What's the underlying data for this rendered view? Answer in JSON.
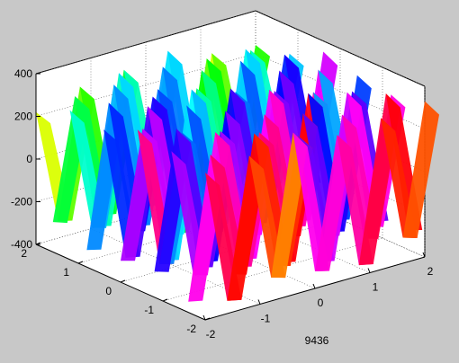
{
  "window": {
    "background": "#c8c8c8",
    "axes_background": "#ffffff"
  },
  "chart_data": {
    "type": "surface",
    "title": "",
    "xlabel": "9436",
    "ylabel": "",
    "zlabel": "",
    "xlim": [
      -2,
      2
    ],
    "ylim": [
      -2,
      2
    ],
    "zlim": [
      -400,
      400
    ],
    "x_ticks": [
      "-2",
      "-1",
      "0",
      "1",
      "2"
    ],
    "y_ticks": [
      "-2",
      "-1",
      "0",
      "1",
      "2"
    ],
    "z_ticks": [
      "-400",
      "-200",
      "0",
      "200",
      "400"
    ],
    "grid": true,
    "box": true,
    "colormap": "hsv",
    "colormap_stops": [
      "#ff0000",
      "#ff8800",
      "#ffff00",
      "#00ff00",
      "#00ffff",
      "#0000ff",
      "#ff00ff",
      "#ff0000"
    ],
    "surface_samples": {
      "x": [
        -2.0,
        -1.6,
        -1.2,
        -0.8,
        -0.4,
        0.0,
        0.4,
        0.8,
        1.2,
        1.6,
        2.0
      ],
      "series": [
        {
          "y": 2.0,
          "z": [
            220,
            -320,
            280,
            -350,
            300,
            -280,
            330,
            -360,
            260,
            -300,
            240
          ]
        },
        {
          "y": 1.6,
          "z": [
            -260,
            300,
            -340,
            350,
            -300,
            320,
            -350,
            300,
            -320,
            280,
            -250
          ]
        },
        {
          "y": 1.2,
          "z": [
            300,
            -280,
            360,
            -330,
            280,
            -360,
            310,
            -290,
            350,
            -310,
            270
          ]
        },
        {
          "y": 0.8,
          "z": [
            -320,
            340,
            -290,
            310,
            -360,
            290,
            -330,
            360,
            -280,
            330,
            -300
          ]
        },
        {
          "y": 0.4,
          "z": [
            280,
            -350,
            330,
            -300,
            350,
            -310,
            280,
            -340,
            320,
            -290,
            350
          ]
        },
        {
          "y": 0.0,
          "z": [
            -300,
            290,
            -360,
            340,
            -280,
            360,
            -300,
            290,
            -350,
            330,
            -280
          ]
        },
        {
          "y": -0.4,
          "z": [
            350,
            -310,
            280,
            -360,
            320,
            -290,
            360,
            -310,
            290,
            -340,
            310
          ]
        },
        {
          "y": -0.8,
          "z": [
            -280,
            360,
            -320,
            290,
            -340,
            310,
            -290,
            350,
            -330,
            300,
            -340
          ]
        },
        {
          "y": -1.2,
          "z": [
            320,
            -290,
            350,
            -310,
            290,
            -350,
            320,
            -280,
            360,
            -300,
            290
          ]
        },
        {
          "y": -1.6,
          "z": [
            -350,
            310,
            -280,
            350,
            -300,
            280,
            -340,
            320,
            -290,
            360,
            -310
          ]
        },
        {
          "y": -2.0,
          "z": [
            290,
            -340,
            310,
            -290,
            360,
            -320,
            290,
            -350,
            310,
            -280,
            330
          ]
        }
      ]
    }
  }
}
